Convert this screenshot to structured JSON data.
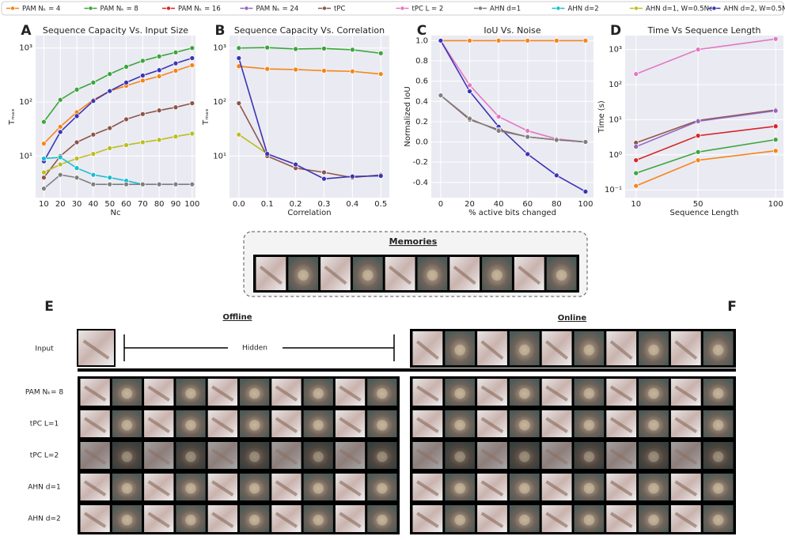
{
  "legend": [
    {
      "name": "PAM Nₖ = 4",
      "color": "#f58518"
    },
    {
      "name": "PAM Nₖ = 8",
      "color": "#3aa63a"
    },
    {
      "name": "PAM Nₖ = 16",
      "color": "#d62728"
    },
    {
      "name": "PAM Nₖ = 24",
      "color": "#9467bd"
    },
    {
      "name": "tPC",
      "color": "#8c564b"
    },
    {
      "name": "tPC L = 2",
      "color": "#e377c2"
    },
    {
      "name": "AHN d=1",
      "color": "#7f7f7f"
    },
    {
      "name": "AHN d=2",
      "color": "#17becf"
    },
    {
      "name": "AHN d=1, W=0.5Nc",
      "color": "#bcbd22"
    },
    {
      "name": "AHN d=2, W=0.5Nc",
      "color": "#3a34b5"
    }
  ],
  "chart_data": [
    {
      "type": "line",
      "panel": "A",
      "title": "Sequence Capacity Vs. Input Size",
      "xlabel": "Nc",
      "ylabel": "Tₘₐₓ",
      "ylog": true,
      "x": [
        10,
        20,
        30,
        40,
        50,
        60,
        70,
        80,
        90,
        100
      ],
      "xlim": [
        5,
        102
      ],
      "xticks": [
        10,
        20,
        30,
        40,
        50,
        60,
        70,
        80,
        90,
        100
      ],
      "ylim": [
        1.7,
        1700
      ],
      "yticks": [
        {
          "value": 10,
          "label": "10¹"
        },
        {
          "value": 100,
          "label": "10²"
        },
        {
          "value": 1000,
          "label": "10³"
        }
      ],
      "series": [
        {
          "name": "PAM Nₖ = 8",
          "color": "#3aa63a",
          "values": [
            43,
            110,
            170,
            230,
            330,
            450,
            580,
            700,
            830,
            1000
          ]
        },
        {
          "name": "PAM Nₖ = 4",
          "color": "#f58518",
          "values": [
            17,
            35,
            65,
            110,
            160,
            200,
            250,
            300,
            380,
            480
          ]
        },
        {
          "name": "AHN d=2, W=0.5Nc",
          "color": "#3a34b5",
          "values": [
            8,
            28,
            55,
            105,
            160,
            230,
            310,
            390,
            520,
            650
          ]
        },
        {
          "name": "tPC",
          "color": "#8c564b",
          "values": [
            4,
            10,
            18,
            25,
            33,
            48,
            60,
            70,
            80,
            95
          ]
        },
        {
          "name": "AHN d=1, W=0.5Nc",
          "color": "#bcbd22",
          "values": [
            5,
            7,
            9,
            11,
            14,
            16,
            18,
            20,
            23,
            26
          ]
        },
        {
          "name": "AHN d=2",
          "color": "#17becf",
          "values": [
            9,
            9.5,
            6,
            4.5,
            4,
            3.5,
            3,
            3,
            3,
            3
          ]
        },
        {
          "name": "AHN d=1",
          "color": "#7f7f7f",
          "values": [
            2.5,
            4.5,
            4,
            3,
            3,
            3,
            3,
            3,
            3,
            3
          ]
        }
      ]
    },
    {
      "type": "line",
      "panel": "B",
      "title": "Sequence Capacity Vs. Correlation",
      "xlabel": "Correlation",
      "ylabel": "Tₘₐₓ",
      "ylog": true,
      "x": [
        0,
        0.1,
        0.2,
        0.3,
        0.4,
        0.5
      ],
      "xlim": [
        -0.033,
        0.53
      ],
      "xticks": [
        {
          "value": 0,
          "label": "0.0"
        },
        0.1,
        0.2,
        0.3,
        0.4,
        0.5
      ],
      "ylim": [
        1.7,
        1700
      ],
      "yticks": [
        {
          "value": 10,
          "label": "10¹"
        },
        {
          "value": 100,
          "label": "10²"
        },
        {
          "value": 1000,
          "label": "10³"
        }
      ],
      "series": [
        {
          "name": "PAM Nₖ = 8",
          "color": "#3aa63a",
          "values": [
            1000,
            1020,
            960,
            980,
            930,
            800
          ]
        },
        {
          "name": "PAM Nₖ = 4",
          "color": "#f58518",
          "values": [
            460,
            410,
            400,
            380,
            370,
            330
          ]
        },
        {
          "name": "AHN d=1, W=0.5Nc",
          "color": "#bcbd22",
          "values": [
            25,
            11,
            null,
            null,
            null,
            null
          ]
        },
        {
          "name": "tPC",
          "color": "#8c564b",
          "values": [
            95,
            10,
            6,
            5,
            4,
            4.5
          ]
        },
        {
          "name": "AHN d=2, W=0.5Nc",
          "color": "#3a34b5",
          "values": [
            650,
            11,
            7,
            3.8,
            4.2,
            4.3
          ]
        }
      ]
    },
    {
      "type": "line",
      "panel": "C",
      "title": "IoU Vs. Noise",
      "xlabel": "% active bits changed",
      "ylabel": "Normalized IoU",
      "ylog": false,
      "x": [
        0,
        20,
        40,
        60,
        80,
        100
      ],
      "xlim": [
        -6.5,
        105.5
      ],
      "xticks": [
        0,
        20,
        40,
        60,
        80,
        100
      ],
      "ylim": [
        -0.55,
        1.05
      ],
      "yticks": [
        -0.4,
        -0.2,
        {
          "value": 0,
          "label": "0.0"
        },
        0.2,
        0.4,
        0.6,
        0.8,
        {
          "value": 1,
          "label": "1.0"
        }
      ],
      "series": [
        {
          "name": "PAM Nₖ = 4",
          "color": "#f58518",
          "values": [
            1,
            1,
            1,
            1,
            1,
            1
          ]
        },
        {
          "name": "tPC L = 2",
          "color": "#e377c2",
          "values": [
            1,
            0.56,
            0.25,
            0.11,
            0.03,
            0
          ]
        },
        {
          "name": "AHN d=2, W=0.5Nc",
          "color": "#3a34b5",
          "values": [
            1,
            0.5,
            0.15,
            -0.12,
            -0.33,
            -0.49
          ]
        },
        {
          "name": "tPC",
          "color": "#8c564b",
          "values": [
            0.46,
            0.22,
            0.12,
            0.05,
            0.02,
            0
          ]
        },
        {
          "name": "AHN d=1",
          "color": "#7f7f7f",
          "values": [
            0.46,
            0.23,
            0.11,
            0.05,
            0.02,
            0
          ]
        }
      ]
    },
    {
      "type": "line",
      "panel": "D",
      "title": "Time Vs Sequence Length",
      "xlabel": "Sequence Length",
      "ylabel": "Time (s)",
      "ylog": true,
      "x": [
        10,
        50,
        100
      ],
      "xlim": [
        3,
        105
      ],
      "xticks": [
        10,
        50,
        100
      ],
      "ylim": [
        0.06,
        2500
      ],
      "yticks": [
        {
          "value": 0.1,
          "label": "10⁻¹"
        },
        {
          "value": 1,
          "label": "10⁰"
        },
        {
          "value": 10,
          "label": "10¹"
        },
        {
          "value": 100,
          "label": "10²"
        },
        {
          "value": 1000,
          "label": "10³"
        }
      ],
      "series": [
        {
          "name": "tPC L = 2",
          "color": "#e377c2",
          "values": [
            200,
            1000,
            2000
          ]
        },
        {
          "name": "tPC",
          "color": "#8c564b",
          "values": [
            2.2,
            9.5,
            19
          ]
        },
        {
          "name": "PAM Nₖ = 24",
          "color": "#9467bd",
          "values": [
            1.7,
            9,
            18
          ]
        },
        {
          "name": "PAM Nₖ = 16",
          "color": "#d62728",
          "values": [
            0.7,
            3.5,
            6.5
          ]
        },
        {
          "name": "PAM Nₖ = 8",
          "color": "#3aa63a",
          "values": [
            0.3,
            1.2,
            2.7
          ]
        },
        {
          "name": "PAM Nₖ = 4",
          "color": "#f58518",
          "values": [
            0.13,
            0.7,
            1.3
          ]
        }
      ]
    }
  ],
  "figure": {
    "memories_title": "Memories",
    "panel_e": "E",
    "panel_f": "F",
    "offline": "Offline",
    "online": "Online",
    "input": "Input",
    "hidden": "Hidden",
    "rows": [
      "PAM Nₖ= 8",
      "tPC L=1",
      "tPC L=2",
      "AHN d=1",
      "AHN d=2"
    ]
  }
}
